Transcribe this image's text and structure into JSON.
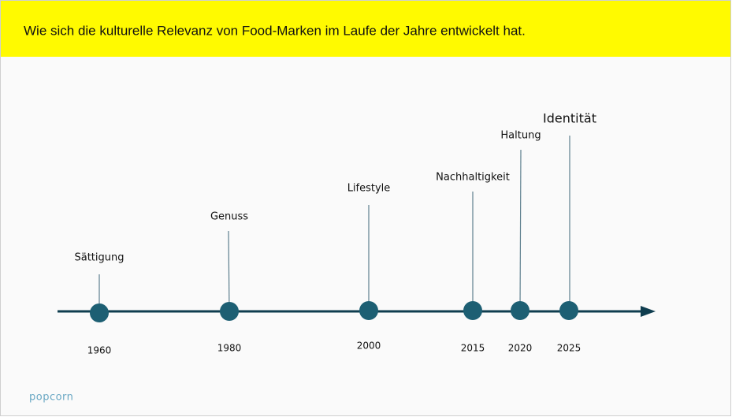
{
  "header": {
    "title": "Wie sich die kulturelle Relevanz von Food-Marken im Laufe der Jahre entwickelt hat."
  },
  "timeline": {
    "events": [
      {
        "label": "Sättigung",
        "year": "1960"
      },
      {
        "label": "Genuss",
        "year": "1980"
      },
      {
        "label": "Lifestyle",
        "year": "2000"
      },
      {
        "label": "Nachhaltigkeit",
        "year": "2015"
      },
      {
        "label": "Haltung",
        "year": "2020"
      },
      {
        "label": "Identität",
        "year": "2025"
      }
    ]
  },
  "footer": {
    "logo": "popcorn"
  }
}
